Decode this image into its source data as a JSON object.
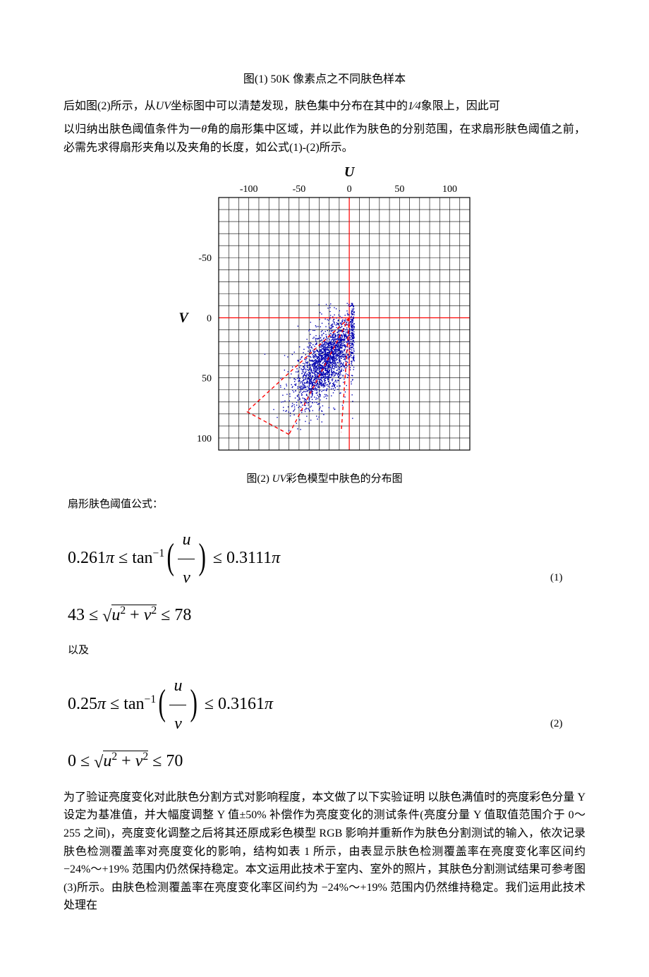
{
  "caption_fig1": "图(1) 50K 像素点之不同肤色样本",
  "para1_a": "后如图(2)所示，从",
  "para1_uv": "UV",
  "para1_b": "坐标图中可以清楚发现，肤色集中分布在其中的",
  "para1_frac_top": "1",
  "para1_frac_bot": "4",
  "para1_c": "象限上，因此可",
  "para2_a": "以归纳出肤色阈值条件为一",
  "para2_theta": "θ",
  "para2_b": "角的扇形集中区域，并以此作为肤色的分别范围，在求扇形肤色阈值之前，必需先求得扇形夹角以及夹角的长度，如公式(1)-(2)所示。",
  "chart": {
    "type": "scatter",
    "u_label": "U",
    "v_label": "V",
    "xlim": [
      -130,
      120
    ],
    "ylim": [
      -100,
      110
    ],
    "x_ticks": [
      -100,
      -50,
      0,
      50,
      100
    ],
    "x_tick_labels": [
      "-100",
      "-50",
      "0",
      "50",
      "100"
    ],
    "y_ticks": [
      -100,
      -50,
      0,
      50,
      100
    ],
    "y_tick_labels": [
      "",
      "-50",
      "0",
      "50",
      "100"
    ],
    "grid_step": 10,
    "grid_color": "#000000",
    "grid_width": 0.6,
    "axis_color": "#ff0000",
    "axis_width": 1.2,
    "background_color": "#ffffff",
    "point_color": "#0000b0",
    "fan_lines": [
      {
        "x1": 0,
        "y1": 0,
        "x2": -60,
        "y2": 97
      },
      {
        "x1": 0,
        "y1": 0,
        "x2": -8,
        "y2": 95
      },
      {
        "x1": 0,
        "y1": 0,
        "x2": -102,
        "y2": 78
      },
      {
        "x1": -60,
        "y1": 97,
        "x2": -102,
        "y2": 78
      }
    ],
    "fan_color": "#ff0000",
    "fan_dash": "5,4",
    "fan_width": 1.4,
    "tick_label_color": "#000000",
    "tick_font_size": 14,
    "axis_label_font_size": 20
  },
  "caption_fig2_a": "图(2)  ",
  "caption_fig2_uv": "UV",
  "caption_fig2_b": "彩色模型中肤色的分布图",
  "formula_title": "扇形肤色阈值公式：",
  "f1_line1": {
    "a": "0.261",
    "pi1": "π",
    "le1": " ≤ ",
    "tan": "tan",
    "minus1": "−1",
    "u": "u",
    "v": "v",
    "le2": " ≤ ",
    "b": "0.3111",
    "pi2": "π"
  },
  "f1_line2": {
    "a": "43 ≤ ",
    "u2": "u",
    "plus": " + ",
    "v2": "v",
    "b": " ≤ 78"
  },
  "f1_label": "(1)",
  "and_label": "以及",
  "f2_line1": {
    "a": "0.25",
    "pi1": "π",
    "le1": " ≤ ",
    "tan": "tan",
    "minus1": "−1",
    "u": "u",
    "v": "v",
    "le2": " ≤ ",
    "b": "0.3161",
    "pi2": "π"
  },
  "f2_line2": {
    "a": "0 ≤ ",
    "u2": "u",
    "plus": " + ",
    "v2": "v",
    "b": " ≤ 70"
  },
  "f2_label": "(2)",
  "para3": "为了验证亮度变化对此肤色分割方式对影响程度，本文做了以下实验证明  以肤色满值时的亮度彩色分量 Y 设定为基准值，并大幅度调整 Y 值±50% 补偿作为亮度变化的测试条件(亮度分量 Y 值取值范围介于 0～255 之间)，亮度变化调整之后将其还原成彩色模型 RGB 影响并重新作为肤色分割测试的输入，依次记录肤色检测覆盖率对亮度变化的影响，结构如表 1 所示，由表显示肤色检测覆盖率在亮度变化率区间约 −24%～+19% 范围内仍然保持稳定。本文运用此技术于室内、室外的照片，其肤色分割测试结果可参考图(3)所示。由肤色检测覆盖率在亮度变化率区间约为 −24%～+19% 范围内仍然维持稳定。我们运用此技术处理在"
}
